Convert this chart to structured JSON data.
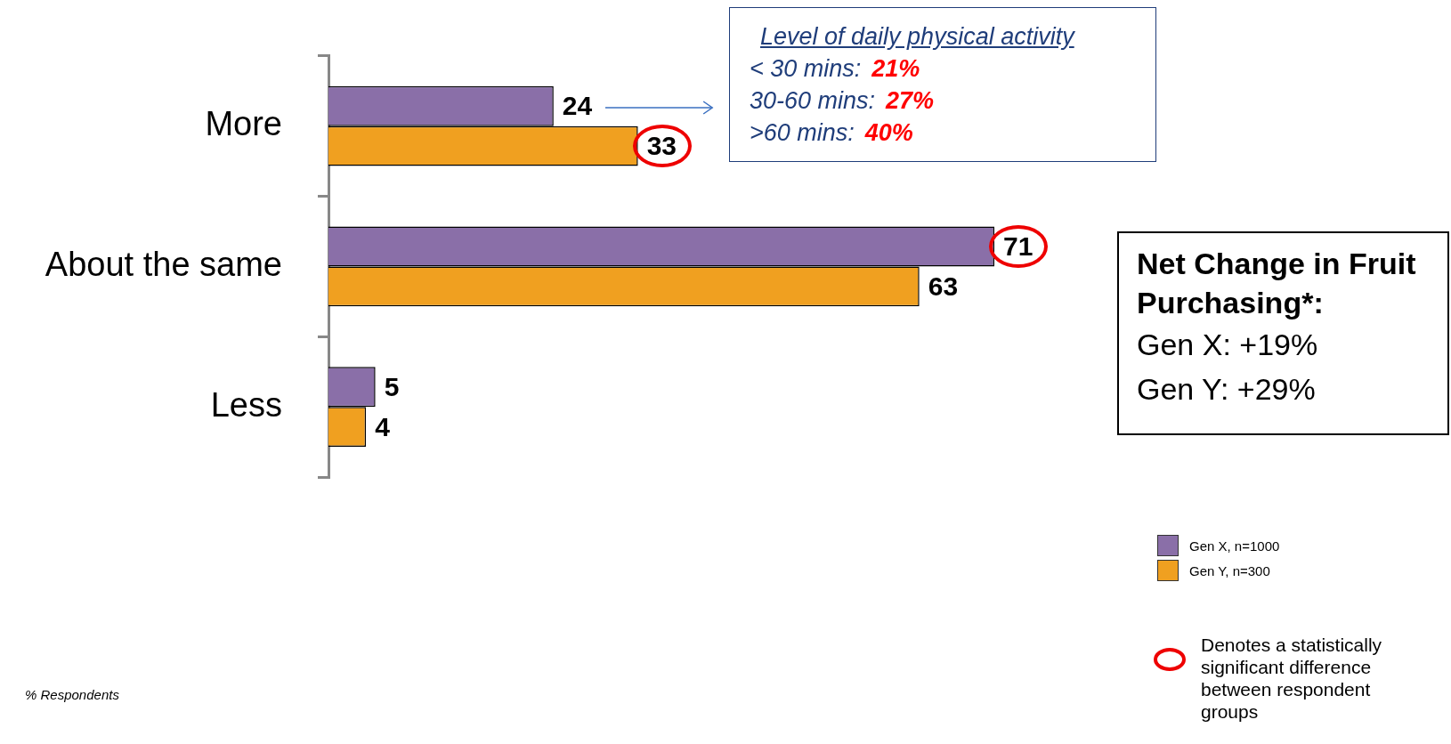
{
  "chart_data": {
    "type": "bar",
    "orientation": "horizontal",
    "categories": [
      "More",
      "About the same",
      "Less"
    ],
    "series": [
      {
        "name": "Gen X, n=1000",
        "color": "#8a6fa8",
        "values": [
          24,
          71,
          5
        ]
      },
      {
        "name": "Gen Y, n=300",
        "color": "#f0a020",
        "values": [
          33,
          63,
          4
        ]
      }
    ],
    "data_labels": true,
    "legend": "bottom right",
    "annotations": [
      "Level of daily physical activity",
      "< 30 mins:",
      "21%",
      "30-60 mins:",
      "27%",
      ">60 mins:",
      "40%",
      "Net Change in Fruit Purchasing*:",
      "Gen X: +19%",
      "Gen Y: +29%",
      "Denotes a statistically significant difference between respondent groups",
      "% Respondents"
    ]
  }
}
